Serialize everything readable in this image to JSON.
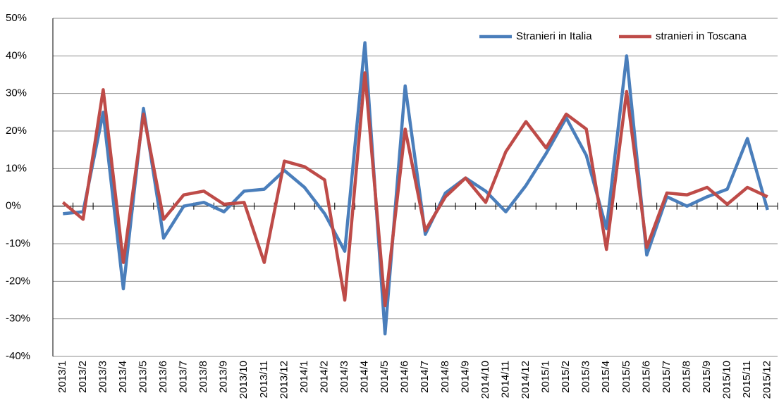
{
  "chart_data": {
    "type": "line",
    "categories": [
      "2013/1",
      "2013/2",
      "2013/3",
      "2013/4",
      "2013/5",
      "2013/6",
      "2013/7",
      "2013/8",
      "2013/9",
      "2013/10",
      "2013/11",
      "2013/12",
      "2014/1",
      "2014/2",
      "2014/3",
      "2014/4",
      "2014/5",
      "2014/6",
      "2014/7",
      "2014/8",
      "2014/9",
      "2014/10",
      "2014/11",
      "2014/12",
      "2015/1",
      "2015/2",
      "2015/3",
      "2015/4",
      "2015/5",
      "2015/6",
      "2015/7",
      "2015/8",
      "2015/9",
      "2015/10",
      "2015/11",
      "2015/12"
    ],
    "series": [
      {
        "name": "Stranieri in Italia",
        "color": "#4a7ebb",
        "values": [
          -2,
          -1.5,
          25,
          -22,
          26,
          -8.5,
          0,
          1,
          -1.5,
          4,
          4.5,
          9.5,
          5,
          -2,
          -12,
          43.5,
          -34,
          32,
          -7.5,
          3.5,
          7.5,
          4,
          -1.5,
          5.5,
          14,
          23.5,
          13.5,
          -6,
          40,
          -13,
          2.5,
          0,
          2.5,
          4.5,
          18,
          -1
        ]
      },
      {
        "name": "stranieri in Toscana",
        "color": "#be4b48",
        "values": [
          1,
          -3.5,
          31,
          -15,
          24.5,
          -3.5,
          3,
          4,
          0.5,
          1,
          -15,
          12,
          10.5,
          7,
          -25,
          35.5,
          -26.5,
          20.5,
          -6.5,
          2.5,
          7.5,
          1,
          14.5,
          22.5,
          15.5,
          24.5,
          20.5,
          -11.5,
          30.5,
          -11,
          3.5,
          3,
          5,
          0.5,
          5,
          2.5
        ]
      }
    ],
    "ylim": [
      -40,
      50
    ],
    "yticks": [
      {
        "value": -40,
        "label": "-40%"
      },
      {
        "value": -30,
        "label": "-30%"
      },
      {
        "value": -20,
        "label": "-20%"
      },
      {
        "value": -10,
        "label": "-10%"
      },
      {
        "value": 0,
        "label": "0%"
      },
      {
        "value": 10,
        "label": "10%"
      },
      {
        "value": 20,
        "label": "20%"
      },
      {
        "value": 30,
        "label": "30%"
      },
      {
        "value": 40,
        "label": "40%"
      },
      {
        "value": 50,
        "label": "50%"
      }
    ],
    "grid": true,
    "legend": "top-right"
  }
}
